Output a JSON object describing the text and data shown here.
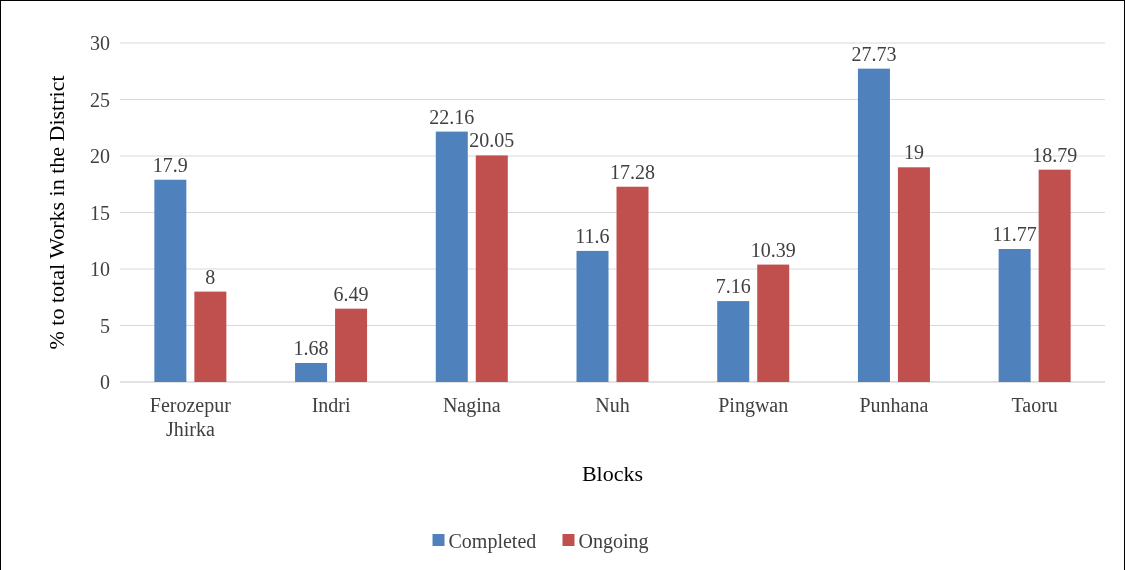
{
  "chart_data": {
    "type": "bar",
    "xlabel": "Blocks",
    "ylabel": "% to total Works in the District",
    "categories": [
      "Ferozepur Jhirka",
      "Indri",
      "Nagina",
      "Nuh",
      "Pingwan",
      "Punhana",
      "Taoru"
    ],
    "series": [
      {
        "name": "Completed",
        "color": "#4f81bd",
        "values": [
          17.9,
          1.68,
          22.16,
          11.6,
          7.16,
          27.73,
          11.77
        ]
      },
      {
        "name": "Ongoing",
        "color": "#c0504d",
        "values": [
          8,
          6.49,
          20.05,
          17.28,
          10.39,
          19,
          18.79
        ]
      }
    ],
    "ylim": [
      0,
      30
    ],
    "yticks": [
      0,
      5,
      10,
      15,
      20,
      25,
      30
    ],
    "grid": "y",
    "legend": "bottom",
    "data_labels": true
  }
}
